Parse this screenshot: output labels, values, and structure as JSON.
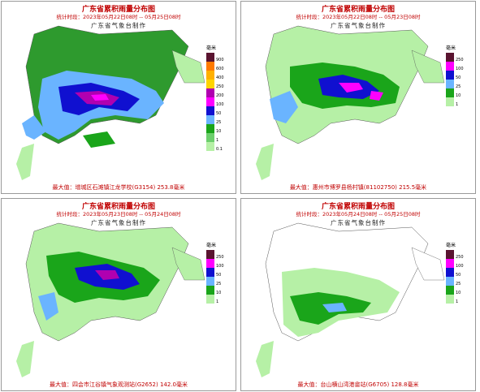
{
  "panels": [
    {
      "title": "广东省累积雨量分布图",
      "stat": "统计时段：2023年05月22日08时  --  05月25日08时",
      "maker": "广东省气象台制作",
      "max": "最大值：增城区石滩镇江龙学校(G3154) 253.8毫米",
      "legend_unit": "毫米",
      "legend": [
        {
          "label": "900",
          "color": "#5a1430"
        },
        {
          "label": "600",
          "color": "#ff7a00"
        },
        {
          "label": "400",
          "color": "#ffb000"
        },
        {
          "label": "250",
          "color": "#ffd400"
        },
        {
          "label": "200",
          "color": "#b000b0"
        },
        {
          "label": "100",
          "color": "#ff00ff"
        },
        {
          "label": "50",
          "color": "#1010d0"
        },
        {
          "label": "25",
          "color": "#6ab4ff"
        },
        {
          "label": "10",
          "color": "#1aa51a"
        },
        {
          "label": "1",
          "color": "#6ccf6c"
        },
        {
          "label": "0.1",
          "color": "#b6f0a6"
        }
      ]
    },
    {
      "title": "广东省累积雨量分布图",
      "stat": "统计时段：2023年05月22日08时  --  05月23日08时",
      "maker": "广东省气象台制作",
      "max": "最大值：惠州市博罗县杨村镇(81102750) 215.5毫米",
      "legend_unit": "毫米",
      "legend": [
        {
          "label": "250",
          "color": "#5a1430"
        },
        {
          "label": "100",
          "color": "#ff00ff"
        },
        {
          "label": "50",
          "color": "#1010d0"
        },
        {
          "label": "25",
          "color": "#6ab4ff"
        },
        {
          "label": "10",
          "color": "#1aa51a"
        },
        {
          "label": "1",
          "color": "#b6f0a6"
        }
      ]
    },
    {
      "title": "广东省累积雨量分布图",
      "stat": "统计时段：2023年05月23日08时  --  05月24日08时",
      "maker": "广东省气象台制作",
      "max": "最大值：四会市江谷镇气象观测站(G2652) 142.0毫米",
      "legend_unit": "毫米",
      "legend": [
        {
          "label": "250",
          "color": "#5a1430"
        },
        {
          "label": "100",
          "color": "#ff00ff"
        },
        {
          "label": "50",
          "color": "#1010d0"
        },
        {
          "label": "25",
          "color": "#6ab4ff"
        },
        {
          "label": "10",
          "color": "#1aa51a"
        },
        {
          "label": "1",
          "color": "#b6f0a6"
        }
      ]
    },
    {
      "title": "广东省累积雨量分布图",
      "stat": "统计时段：2023年05月24日08时  --  05月25日08时",
      "maker": "广东省气象台制作",
      "max": "最大值：台山横山湾港畲站(G6705) 128.8毫米",
      "legend_unit": "毫米",
      "legend": [
        {
          "label": "250",
          "color": "#5a1430"
        },
        {
          "label": "100",
          "color": "#ff00ff"
        },
        {
          "label": "50",
          "color": "#1010d0"
        },
        {
          "label": "25",
          "color": "#6ab4ff"
        },
        {
          "label": "10",
          "color": "#1aa51a"
        },
        {
          "label": "1",
          "color": "#b6f0a6"
        }
      ]
    }
  ],
  "colors": {
    "sea": "#ffffff",
    "land_bg": "#ffffff",
    "outline": "#666666",
    "heading": "#c00000"
  }
}
